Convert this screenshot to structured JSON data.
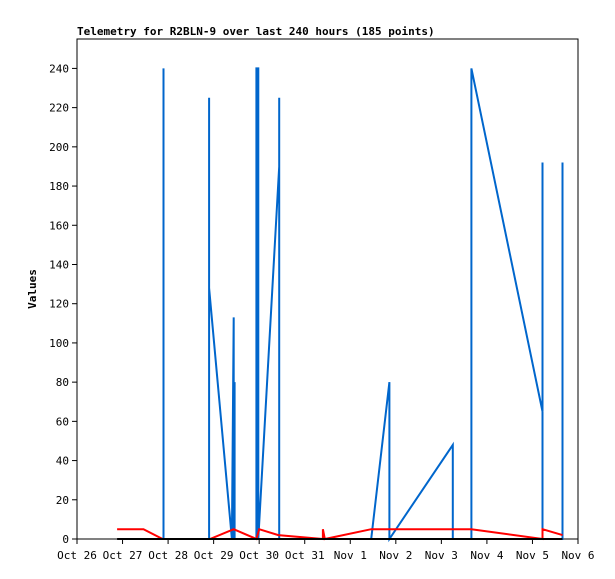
{
  "chart_data": {
    "type": "line",
    "title": "Telemetry for R2BLN-9 over last 240 hours (185 points)",
    "xlabel": "",
    "ylabel": "Values",
    "xlim": [
      "Oct 26",
      "Nov 6"
    ],
    "ylim": [
      0,
      255
    ],
    "yticks": [
      0,
      20,
      40,
      60,
      80,
      100,
      120,
      140,
      160,
      180,
      200,
      220,
      240
    ],
    "xticks": [
      "Oct 26",
      "Oct 27",
      "Oct 28",
      "Oct 29",
      "Oct 30",
      "Oct 31",
      "Nov 1",
      "Nov 2",
      "Nov 3",
      "Nov 4",
      "Nov 5",
      "Nov 6"
    ],
    "grid": false,
    "legend": "none",
    "series": [
      {
        "color": "#0066cc",
        "points": [
          [
            1.9,
            0
          ],
          [
            1.9,
            240
          ],
          [
            1.9,
            0
          ],
          [
            2.9,
            0
          ],
          [
            2.9,
            225
          ],
          [
            2.9,
            65
          ],
          [
            2.9,
            128
          ],
          [
            3.4,
            0
          ],
          [
            3.44,
            113
          ],
          [
            3.44,
            0
          ],
          [
            3.46,
            80
          ],
          [
            3.46,
            0
          ],
          [
            3.94,
            0
          ],
          [
            3.94,
            240
          ],
          [
            3.98,
            240
          ],
          [
            3.98,
            0
          ],
          [
            4.44,
            190
          ],
          [
            4.44,
            225
          ],
          [
            4.44,
            0
          ],
          [
            6.46,
            0
          ],
          [
            6.86,
            80
          ],
          [
            6.86,
            0
          ],
          [
            8.25,
            48
          ],
          [
            8.25,
            0
          ],
          [
            8.66,
            0
          ],
          [
            8.66,
            240
          ],
          [
            10.22,
            65
          ],
          [
            10.22,
            192
          ],
          [
            10.22,
            0
          ],
          [
            10.66,
            0
          ],
          [
            10.66,
            192
          ]
        ]
      },
      {
        "color": "#ff0000",
        "points": [
          [
            0.88,
            5
          ],
          [
            1.46,
            5
          ],
          [
            1.88,
            0
          ],
          [
            2.92,
            0
          ],
          [
            3.44,
            5
          ],
          [
            3.94,
            0
          ],
          [
            4.0,
            5
          ],
          [
            4.42,
            2
          ],
          [
            5.4,
            0
          ],
          [
            5.4,
            5
          ],
          [
            5.44,
            0
          ],
          [
            6.46,
            5
          ],
          [
            8.66,
            5
          ],
          [
            10.22,
            0
          ],
          [
            10.22,
            5
          ],
          [
            10.66,
            2
          ]
        ]
      },
      {
        "color": "#000000",
        "points": [
          [
            0.88,
            0
          ],
          [
            10.66,
            0
          ]
        ]
      }
    ]
  }
}
